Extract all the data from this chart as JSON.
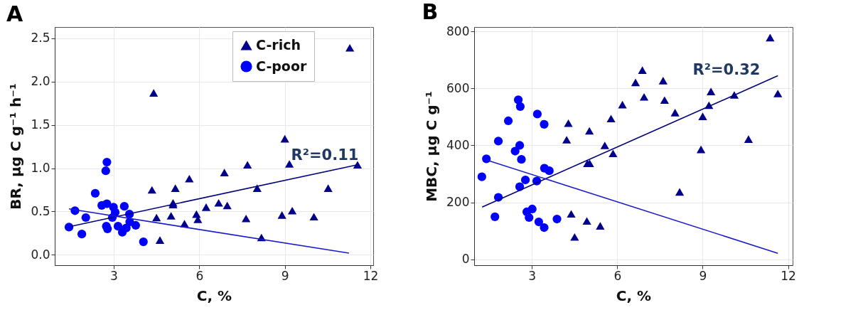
{
  "chart_data": [
    {
      "type": "scatter",
      "title": "A",
      "xlabel": "C, %",
      "ylabel": "BR, µg C g⁻¹ h⁻¹",
      "xlim": [
        0.93,
        12.1
      ],
      "ylim": [
        -0.12,
        2.63
      ],
      "xticks": [
        3,
        6,
        9,
        12
      ],
      "yticks": [
        {
          "value": 0,
          "label": "0.0"
        },
        0.5,
        {
          "value": 1,
          "label": "1.0"
        },
        1.5,
        {
          "value": 2,
          "label": "2.0"
        },
        2.5
      ],
      "grid": true,
      "legend": "top right",
      "annotations": [
        "R²=0.11"
      ],
      "series": [
        {
          "name": "C-rich",
          "marker": "triangle",
          "color": "#00008b",
          "x": [
            4.4,
            11.28,
            9.0,
            7.69,
            9.16,
            11.55,
            6.88,
            5.65,
            8.03,
            10.52,
            5.16,
            4.34,
            6.68,
            6.98,
            6.24,
            5.08,
            5.08,
            5.9,
            5.95,
            5.01,
            4.5,
            5.48,
            7.64,
            8.9,
            9.26,
            10.02,
            8.18,
            4.62
          ],
          "values": [
            1.87,
            2.39,
            1.34,
            1.04,
            1.05,
            1.04,
            0.95,
            0.88,
            0.77,
            0.77,
            0.77,
            0.75,
            0.6,
            0.57,
            0.55,
            0.6,
            0.58,
            0.47,
            0.41,
            0.45,
            0.43,
            0.36,
            0.42,
            0.46,
            0.51,
            0.44,
            0.2,
            0.17
          ]
        },
        {
          "name": "C-poor",
          "marker": "circle",
          "color": "#0000ff",
          "x": [
            2.76,
            2.72,
            2.35,
            1.64,
            1.43,
            1.88,
            2.02,
            2.58,
            2.76,
            2.99,
            3.05,
            2.95,
            3.37,
            2.74,
            2.78,
            3.15,
            3.3,
            3.44,
            3.55,
            3.56,
            3.77,
            4.04
          ],
          "values": [
            1.07,
            0.97,
            0.71,
            0.51,
            0.32,
            0.24,
            0.43,
            0.57,
            0.59,
            0.55,
            0.49,
            0.43,
            0.56,
            0.33,
            0.3,
            0.33,
            0.26,
            0.31,
            0.47,
            0.38,
            0.34,
            0.15
          ]
        },
        {
          "type": "line",
          "color": "#00007a",
          "x": [
            1.51,
            11.55
          ],
          "values": [
            0.33,
            1.04
          ]
        },
        {
          "type": "line",
          "color": "#1a1acc",
          "x": [
            1.43,
            11.25
          ],
          "values": [
            0.53,
            0.02
          ]
        }
      ]
    },
    {
      "type": "scatter",
      "title": "B",
      "xlabel": "C, %",
      "ylabel": "MBC, µg C g⁻¹",
      "xlim": [
        0.97,
        12.16
      ],
      "ylim": [
        -20,
        815
      ],
      "xticks": [
        3,
        6,
        9,
        12
      ],
      "yticks": [
        0,
        200,
        400,
        600,
        800
      ],
      "grid": true,
      "annotations": [
        "R²=0.32"
      ],
      "series": [
        {
          "marker": "triangle",
          "color": "#00008b",
          "x": [
            11.37,
            6.88,
            6.64,
            7.61,
            9.29,
            11.64,
            6.94,
            7.66,
            10.11,
            6.18,
            9.22,
            8.03,
            9.0,
            5.78,
            5.02,
            4.28,
            4.22,
            5.56,
            5.85,
            10.61,
            8.94,
            5.03,
            4.95,
            8.19,
            4.38,
            4.93,
            5.4,
            4.5
          ],
          "values": [
            778,
            664,
            621,
            627,
            589,
            582,
            570,
            559,
            577,
            543,
            541,
            515,
            502,
            494,
            451,
            478,
            420,
            400,
            372,
            422,
            386,
            337,
            337,
            237,
            160,
            135,
            118,
            79
          ]
        },
        {
          "marker": "circle",
          "color": "#0000ff",
          "x": [
            2.52,
            2.59,
            3.19,
            2.17,
            3.43,
            1.82,
            2.57,
            2.41,
            2.63,
            1.4,
            3.44,
            3.61,
            1.24,
            2.77,
            3.17,
            2.57,
            1.82,
            3.01,
            2.82,
            2.9,
            1.7,
            3.24,
            3.43,
            3.88
          ],
          "values": [
            560,
            536,
            510,
            486,
            474,
            415,
            400,
            380,
            351,
            353,
            320,
            311,
            290,
            279,
            275,
            255,
            218,
            177,
            167,
            147,
            150,
            132,
            112,
            142
          ]
        },
        {
          "type": "line",
          "color": "#00007a",
          "x": [
            1.25,
            11.64
          ],
          "values": [
            184,
            644
          ]
        },
        {
          "type": "line",
          "color": "#1a1acc",
          "x": [
            1.4,
            11.64
          ],
          "values": [
            349,
            22
          ]
        }
      ]
    }
  ]
}
